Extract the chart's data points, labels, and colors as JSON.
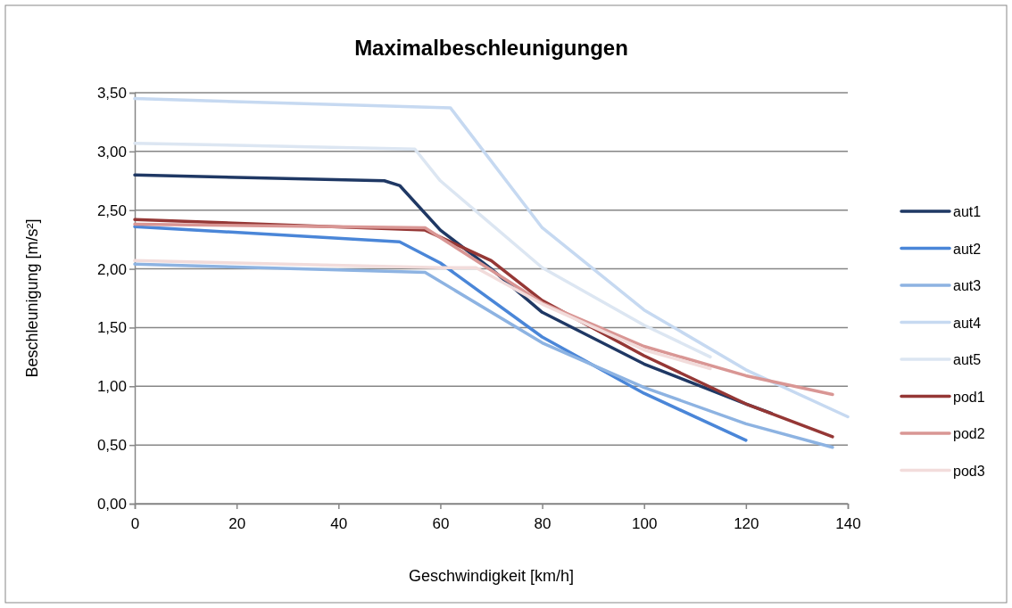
{
  "chart_data": {
    "type": "line",
    "title": "Maximalbeschleunigungen",
    "xlabel": "Geschwindigkeit  [km/h]",
    "ylabel": "Beschleunigung [m/s²]",
    "xlim": [
      0,
      140
    ],
    "xticks": [
      0,
      20,
      40,
      60,
      80,
      100,
      120,
      140
    ],
    "ylim": [
      0,
      3.5
    ],
    "yticks": [
      {
        "value": 0,
        "label": "0,00"
      },
      {
        "value": 0.5,
        "label": "0,50"
      },
      {
        "value": 1,
        "label": "1,00"
      },
      {
        "value": 1.5,
        "label": "1,50"
      },
      {
        "value": 2,
        "label": "2,00"
      },
      {
        "value": 2.5,
        "label": "2,50"
      },
      {
        "value": 3,
        "label": "3,00"
      },
      {
        "value": 3.5,
        "label": "3,50"
      }
    ],
    "grid": "y",
    "legend": "right",
    "marker": "none",
    "line_style": "solid",
    "series": [
      {
        "name": "aut1",
        "color": "#1f3864",
        "x": [
          0,
          49,
          52,
          60,
          70,
          80,
          100,
          120,
          125
        ],
        "values": [
          2.8,
          2.75,
          2.71,
          2.33,
          2.0,
          1.63,
          1.19,
          0.85,
          0.77
        ]
      },
      {
        "name": "aut2",
        "color": "#4a86d8",
        "x": [
          0,
          52,
          60,
          80,
          100,
          120
        ],
        "values": [
          2.36,
          2.23,
          2.05,
          1.42,
          0.94,
          0.54
        ]
      },
      {
        "name": "aut3",
        "color": "#8db3e2",
        "x": [
          0,
          57,
          80,
          100,
          120,
          137
        ],
        "values": [
          2.04,
          1.97,
          1.37,
          0.99,
          0.68,
          0.48
        ]
      },
      {
        "name": "aut4",
        "color": "#c6d9f1",
        "x": [
          0,
          62,
          80,
          100,
          120,
          140
        ],
        "values": [
          3.45,
          3.37,
          2.35,
          1.65,
          1.14,
          0.74
        ]
      },
      {
        "name": "aut5",
        "color": "#dce6f2",
        "x": [
          0,
          55,
          60,
          80,
          100,
          113
        ],
        "values": [
          3.07,
          3.02,
          2.75,
          2.01,
          1.52,
          1.25
        ]
      },
      {
        "name": "pod1",
        "color": "#953735",
        "x": [
          0,
          57,
          70,
          80,
          100,
          120,
          137
        ],
        "values": [
          2.42,
          2.33,
          2.07,
          1.73,
          1.26,
          0.85,
          0.57
        ]
      },
      {
        "name": "pod2",
        "color": "#d99694",
        "x": [
          0,
          57,
          80,
          100,
          120,
          137
        ],
        "values": [
          2.38,
          2.35,
          1.71,
          1.34,
          1.09,
          0.93
        ]
      },
      {
        "name": "pod3",
        "color": "#f2dcdb",
        "x": [
          0,
          60,
          67,
          80,
          100,
          113
        ],
        "values": [
          2.07,
          2.01,
          2.01,
          1.7,
          1.31,
          1.15
        ]
      }
    ]
  }
}
